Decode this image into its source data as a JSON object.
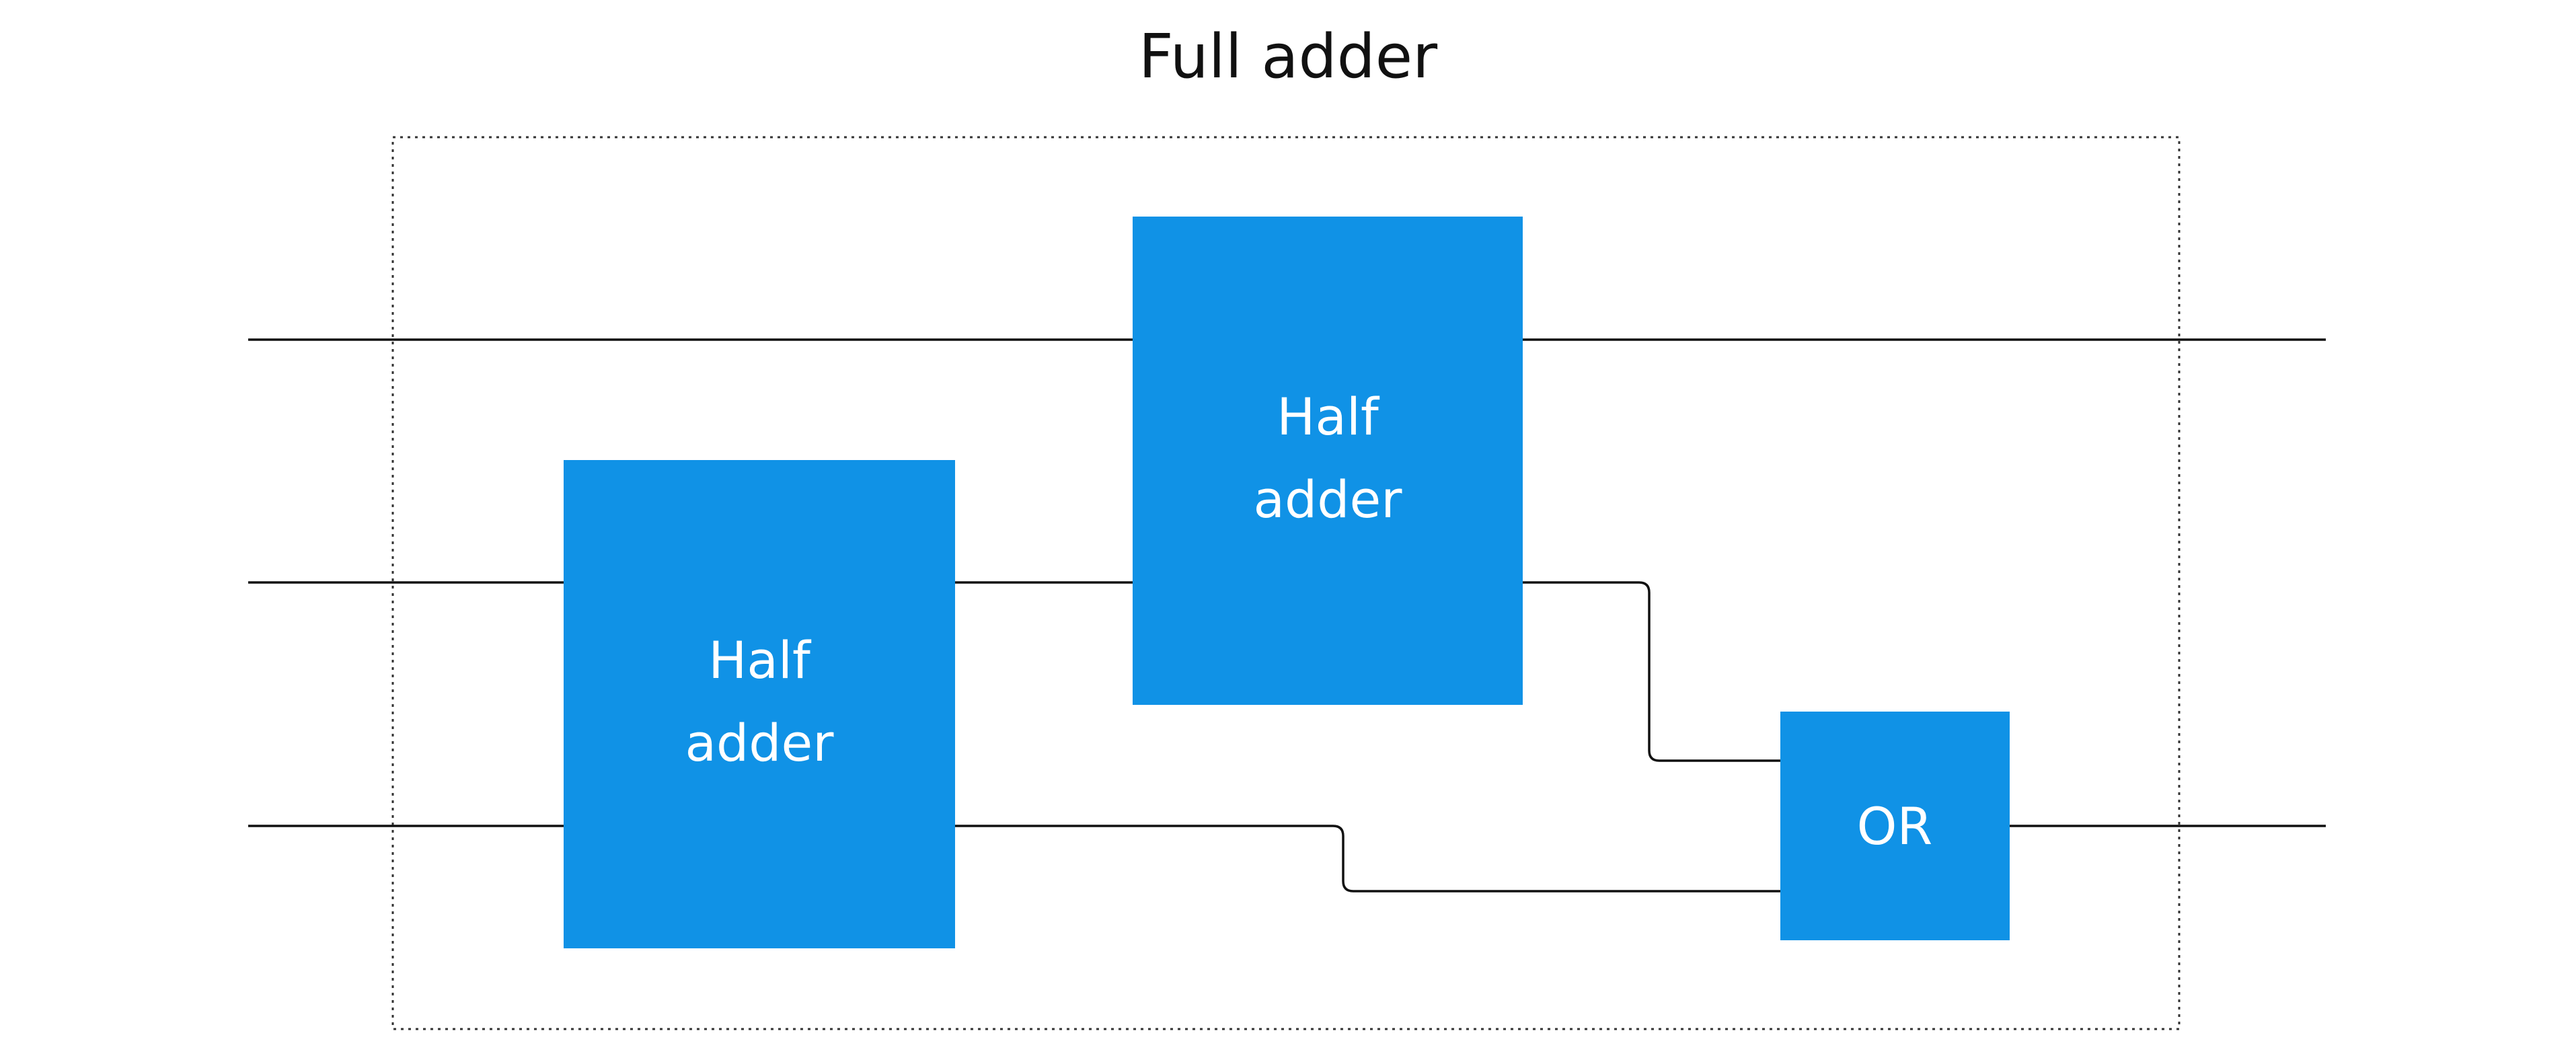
{
  "diagram": {
    "title": "Full adder",
    "block_color": "#1092E6",
    "blocks": [
      {
        "id": "half-adder-1",
        "lines": [
          "Half",
          "adder"
        ]
      },
      {
        "id": "half-adder-2",
        "lines": [
          "Half",
          "adder"
        ]
      },
      {
        "id": "or-gate",
        "lines": [
          "OR"
        ]
      }
    ]
  }
}
